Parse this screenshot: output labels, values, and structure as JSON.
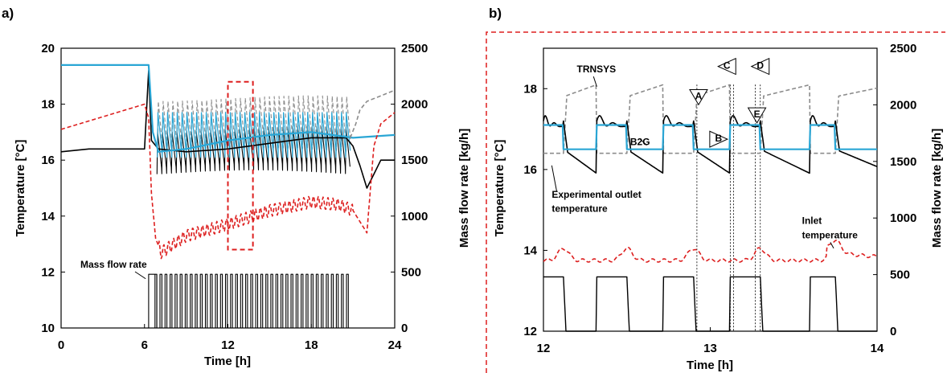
{
  "chart_data": [
    {
      "panel_label": "a)",
      "type": "line",
      "xlabel": "Time [h]",
      "ylabel": "Temperature [°C]",
      "y2label": "Mass flow rate [kg/h]",
      "xlim": [
        0,
        24
      ],
      "ylim": [
        10,
        20
      ],
      "y2lim": [
        0,
        2500
      ],
      "xticks": [
        "0",
        "6",
        "12",
        "18",
        "24"
      ],
      "yticks": [
        "10",
        "12",
        "14",
        "16",
        "18",
        "20"
      ],
      "y2ticks": [
        "0",
        "500",
        "1000",
        "1500",
        "2000",
        "2500"
      ],
      "grid": false,
      "annotations": [
        {
          "text": "Mass flow rate",
          "x": 6.2,
          "y": 2.2
        }
      ],
      "highlight_box": {
        "x": [
          12.0,
          13.8
        ],
        "y": [
          12.8,
          18.8
        ]
      },
      "series": [
        {
          "key": "black",
          "color": "#000000",
          "style": "solid",
          "axis": "left",
          "x": [
            0,
            2,
            4,
            6,
            6.3,
            6.5,
            7,
            9,
            12,
            15,
            18,
            20.5,
            21,
            21.5,
            22,
            22.5,
            23,
            24
          ],
          "y": [
            16.3,
            16.4,
            16.4,
            16.4,
            19.2,
            16.7,
            16.4,
            16.3,
            16.4,
            16.6,
            16.8,
            16.8,
            16.5,
            15.8,
            15.0,
            15.5,
            16.0,
            16.0
          ]
        },
        {
          "key": "blue",
          "color": "#2aa6d5",
          "style": "solid",
          "axis": "left",
          "x": [
            0,
            6.3,
            6.6,
            7,
            9,
            12,
            15,
            18,
            21,
            24
          ],
          "y": [
            19.4,
            19.4,
            17.0,
            16.3,
            16.4,
            16.7,
            16.9,
            17.0,
            16.8,
            16.9
          ]
        },
        {
          "key": "gray",
          "color": "#8c8c8c",
          "style": "dashed",
          "axis": "left",
          "x": [
            20.8,
            21.2,
            21.5,
            22,
            23,
            24
          ],
          "y": [
            16.8,
            17.3,
            17.8,
            18.1,
            18.3,
            18.5
          ]
        },
        {
          "key": "red",
          "color": "#dd1f1f",
          "style": "dashed",
          "axis": "left",
          "x": [
            0,
            2,
            4,
            6,
            6.3,
            6.5,
            6.8,
            7.2,
            9,
            12,
            15,
            18,
            20,
            21,
            21.5,
            22,
            22.5,
            23,
            24
          ],
          "y": [
            17.1,
            17.4,
            17.7,
            18.0,
            17.5,
            14.8,
            13.2,
            12.7,
            13.3,
            13.7,
            14.2,
            14.5,
            14.4,
            14.2,
            13.8,
            13.4,
            16.5,
            17.3,
            17.7
          ]
        },
        {
          "key": "mass-flow",
          "color": "#000000",
          "style": "step",
          "axis": "right",
          "on_level": 480,
          "off_level": 0,
          "start": 6.3,
          "end": 20.8,
          "pulses": 40
        }
      ],
      "oscillations": {
        "start": 6.9,
        "end": 20.8,
        "cycles": 40,
        "black_range": [
          15.5,
          17.1
        ],
        "gray_range": [
          16.3,
          18.2
        ],
        "blue_range": [
          16.1,
          17.7
        ]
      }
    },
    {
      "panel_label": "b)",
      "type": "line",
      "xlabel": "Time [h]",
      "ylabel": "Temperature [°C]",
      "y2label": "Mass flow rate [kg/h]",
      "xlim": [
        12,
        14
      ],
      "ylim": [
        12,
        19
      ],
      "y2lim": [
        0,
        2500
      ],
      "xticks": [
        "12",
        "13",
        "14"
      ],
      "yticks": [
        "12",
        "14",
        "16",
        "18"
      ],
      "y2ticks": [
        "0",
        "500",
        "1000",
        "1500",
        "2000",
        "2500"
      ],
      "grid": false,
      "annotations": [
        {
          "text": "TRNSYS",
          "x": 12.2,
          "y": 18.4
        },
        {
          "text": "B2G",
          "x": 12.52,
          "y": 16.6
        },
        {
          "text": "Experimental outlet",
          "x": 12.05,
          "y": 15.3
        },
        {
          "text": "temperature",
          "x": 12.05,
          "y": 14.95
        },
        {
          "text": "Inlet",
          "x": 13.55,
          "y": 14.65
        },
        {
          "text": "temperature",
          "x": 13.55,
          "y": 14.3
        }
      ],
      "markers": [
        {
          "label": "A",
          "x": 12.93,
          "y": 17.8,
          "shape": "triangle-down"
        },
        {
          "label": "B",
          "x": 13.05,
          "y": 16.75,
          "shape": "triangle-right"
        },
        {
          "label": "C",
          "x": 13.1,
          "y": 18.55,
          "shape": "triangle-left"
        },
        {
          "label": "D",
          "x": 13.3,
          "y": 18.55,
          "shape": "triangle-left"
        },
        {
          "label": "E",
          "x": 13.28,
          "y": 17.35,
          "shape": "triangle-down"
        }
      ],
      "vlines": [
        12.92,
        13.12,
        13.14,
        13.27,
        13.3
      ],
      "cycles": [
        {
          "on": 12.0,
          "off": 12.12
        },
        {
          "on": 12.32,
          "off": 12.5
        },
        {
          "on": 12.72,
          "off": 12.9
        },
        {
          "on": 13.12,
          "off": 13.3
        },
        {
          "on": 13.6,
          "off": 13.75
        }
      ],
      "series": [
        {
          "key": "experimental-outlet",
          "color": "#000000",
          "style": "solid",
          "axis": "left",
          "name": "Experimental outlet temperature",
          "on_value": 17.2,
          "decay_start": 16.5,
          "decay_end": 15.9
        },
        {
          "key": "B2G",
          "color": "#2aa6d5",
          "style": "solid",
          "axis": "left",
          "name": "B2G",
          "on_value": 17.1,
          "off_value": 16.5
        },
        {
          "key": "TRNSYS",
          "color": "#8c8c8c",
          "style": "dashed",
          "axis": "left",
          "name": "TRNSYS",
          "on_value": 16.4,
          "off_start": 17.8,
          "off_end": 18.1
        },
        {
          "key": "inlet",
          "color": "#dd1f1f",
          "style": "dashed",
          "axis": "left",
          "name": "Inlet temperature",
          "base": 13.75,
          "peak": 14.05
        },
        {
          "key": "mass-flow",
          "color": "#000000",
          "style": "step",
          "axis": "right",
          "on_level": 480,
          "off_level": 0
        }
      ]
    }
  ]
}
